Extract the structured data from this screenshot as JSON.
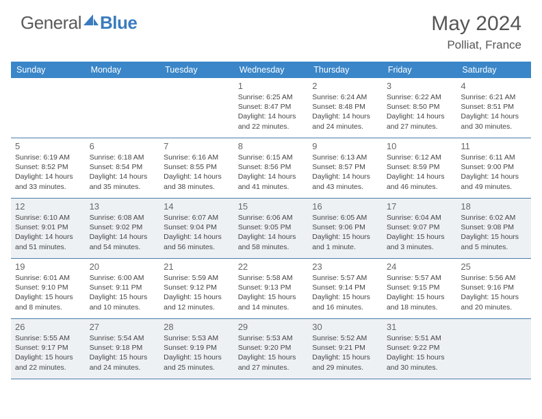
{
  "brand": {
    "part1": "General",
    "part2": "Blue"
  },
  "title": "May 2024",
  "location": "Polliat, France",
  "weekdays": [
    "Sunday",
    "Monday",
    "Tuesday",
    "Wednesday",
    "Thursday",
    "Friday",
    "Saturday"
  ],
  "colors": {
    "header_bar": "#3a86c8",
    "shaded_row": "#eef1f4",
    "rule": "#4a7ba8",
    "brand_gray": "#5a5a5a",
    "brand_blue": "#3a7bbf"
  },
  "weeks": [
    {
      "shaded": false,
      "days": [
        {
          "n": "",
          "sunrise": "",
          "sunset": "",
          "daylight": ""
        },
        {
          "n": "",
          "sunrise": "",
          "sunset": "",
          "daylight": ""
        },
        {
          "n": "",
          "sunrise": "",
          "sunset": "",
          "daylight": ""
        },
        {
          "n": "1",
          "sunrise": "Sunrise: 6:25 AM",
          "sunset": "Sunset: 8:47 PM",
          "daylight": "Daylight: 14 hours and 22 minutes."
        },
        {
          "n": "2",
          "sunrise": "Sunrise: 6:24 AM",
          "sunset": "Sunset: 8:48 PM",
          "daylight": "Daylight: 14 hours and 24 minutes."
        },
        {
          "n": "3",
          "sunrise": "Sunrise: 6:22 AM",
          "sunset": "Sunset: 8:50 PM",
          "daylight": "Daylight: 14 hours and 27 minutes."
        },
        {
          "n": "4",
          "sunrise": "Sunrise: 6:21 AM",
          "sunset": "Sunset: 8:51 PM",
          "daylight": "Daylight: 14 hours and 30 minutes."
        }
      ]
    },
    {
      "shaded": false,
      "days": [
        {
          "n": "5",
          "sunrise": "Sunrise: 6:19 AM",
          "sunset": "Sunset: 8:52 PM",
          "daylight": "Daylight: 14 hours and 33 minutes."
        },
        {
          "n": "6",
          "sunrise": "Sunrise: 6:18 AM",
          "sunset": "Sunset: 8:54 PM",
          "daylight": "Daylight: 14 hours and 35 minutes."
        },
        {
          "n": "7",
          "sunrise": "Sunrise: 6:16 AM",
          "sunset": "Sunset: 8:55 PM",
          "daylight": "Daylight: 14 hours and 38 minutes."
        },
        {
          "n": "8",
          "sunrise": "Sunrise: 6:15 AM",
          "sunset": "Sunset: 8:56 PM",
          "daylight": "Daylight: 14 hours and 41 minutes."
        },
        {
          "n": "9",
          "sunrise": "Sunrise: 6:13 AM",
          "sunset": "Sunset: 8:57 PM",
          "daylight": "Daylight: 14 hours and 43 minutes."
        },
        {
          "n": "10",
          "sunrise": "Sunrise: 6:12 AM",
          "sunset": "Sunset: 8:59 PM",
          "daylight": "Daylight: 14 hours and 46 minutes."
        },
        {
          "n": "11",
          "sunrise": "Sunrise: 6:11 AM",
          "sunset": "Sunset: 9:00 PM",
          "daylight": "Daylight: 14 hours and 49 minutes."
        }
      ]
    },
    {
      "shaded": true,
      "days": [
        {
          "n": "12",
          "sunrise": "Sunrise: 6:10 AM",
          "sunset": "Sunset: 9:01 PM",
          "daylight": "Daylight: 14 hours and 51 minutes."
        },
        {
          "n": "13",
          "sunrise": "Sunrise: 6:08 AM",
          "sunset": "Sunset: 9:02 PM",
          "daylight": "Daylight: 14 hours and 54 minutes."
        },
        {
          "n": "14",
          "sunrise": "Sunrise: 6:07 AM",
          "sunset": "Sunset: 9:04 PM",
          "daylight": "Daylight: 14 hours and 56 minutes."
        },
        {
          "n": "15",
          "sunrise": "Sunrise: 6:06 AM",
          "sunset": "Sunset: 9:05 PM",
          "daylight": "Daylight: 14 hours and 58 minutes."
        },
        {
          "n": "16",
          "sunrise": "Sunrise: 6:05 AM",
          "sunset": "Sunset: 9:06 PM",
          "daylight": "Daylight: 15 hours and 1 minute."
        },
        {
          "n": "17",
          "sunrise": "Sunrise: 6:04 AM",
          "sunset": "Sunset: 9:07 PM",
          "daylight": "Daylight: 15 hours and 3 minutes."
        },
        {
          "n": "18",
          "sunrise": "Sunrise: 6:02 AM",
          "sunset": "Sunset: 9:08 PM",
          "daylight": "Daylight: 15 hours and 5 minutes."
        }
      ]
    },
    {
      "shaded": false,
      "days": [
        {
          "n": "19",
          "sunrise": "Sunrise: 6:01 AM",
          "sunset": "Sunset: 9:10 PM",
          "daylight": "Daylight: 15 hours and 8 minutes."
        },
        {
          "n": "20",
          "sunrise": "Sunrise: 6:00 AM",
          "sunset": "Sunset: 9:11 PM",
          "daylight": "Daylight: 15 hours and 10 minutes."
        },
        {
          "n": "21",
          "sunrise": "Sunrise: 5:59 AM",
          "sunset": "Sunset: 9:12 PM",
          "daylight": "Daylight: 15 hours and 12 minutes."
        },
        {
          "n": "22",
          "sunrise": "Sunrise: 5:58 AM",
          "sunset": "Sunset: 9:13 PM",
          "daylight": "Daylight: 15 hours and 14 minutes."
        },
        {
          "n": "23",
          "sunrise": "Sunrise: 5:57 AM",
          "sunset": "Sunset: 9:14 PM",
          "daylight": "Daylight: 15 hours and 16 minutes."
        },
        {
          "n": "24",
          "sunrise": "Sunrise: 5:57 AM",
          "sunset": "Sunset: 9:15 PM",
          "daylight": "Daylight: 15 hours and 18 minutes."
        },
        {
          "n": "25",
          "sunrise": "Sunrise: 5:56 AM",
          "sunset": "Sunset: 9:16 PM",
          "daylight": "Daylight: 15 hours and 20 minutes."
        }
      ]
    },
    {
      "shaded": true,
      "days": [
        {
          "n": "26",
          "sunrise": "Sunrise: 5:55 AM",
          "sunset": "Sunset: 9:17 PM",
          "daylight": "Daylight: 15 hours and 22 minutes."
        },
        {
          "n": "27",
          "sunrise": "Sunrise: 5:54 AM",
          "sunset": "Sunset: 9:18 PM",
          "daylight": "Daylight: 15 hours and 24 minutes."
        },
        {
          "n": "28",
          "sunrise": "Sunrise: 5:53 AM",
          "sunset": "Sunset: 9:19 PM",
          "daylight": "Daylight: 15 hours and 25 minutes."
        },
        {
          "n": "29",
          "sunrise": "Sunrise: 5:53 AM",
          "sunset": "Sunset: 9:20 PM",
          "daylight": "Daylight: 15 hours and 27 minutes."
        },
        {
          "n": "30",
          "sunrise": "Sunrise: 5:52 AM",
          "sunset": "Sunset: 9:21 PM",
          "daylight": "Daylight: 15 hours and 29 minutes."
        },
        {
          "n": "31",
          "sunrise": "Sunrise: 5:51 AM",
          "sunset": "Sunset: 9:22 PM",
          "daylight": "Daylight: 15 hours and 30 minutes."
        },
        {
          "n": "",
          "sunrise": "",
          "sunset": "",
          "daylight": ""
        }
      ]
    }
  ]
}
